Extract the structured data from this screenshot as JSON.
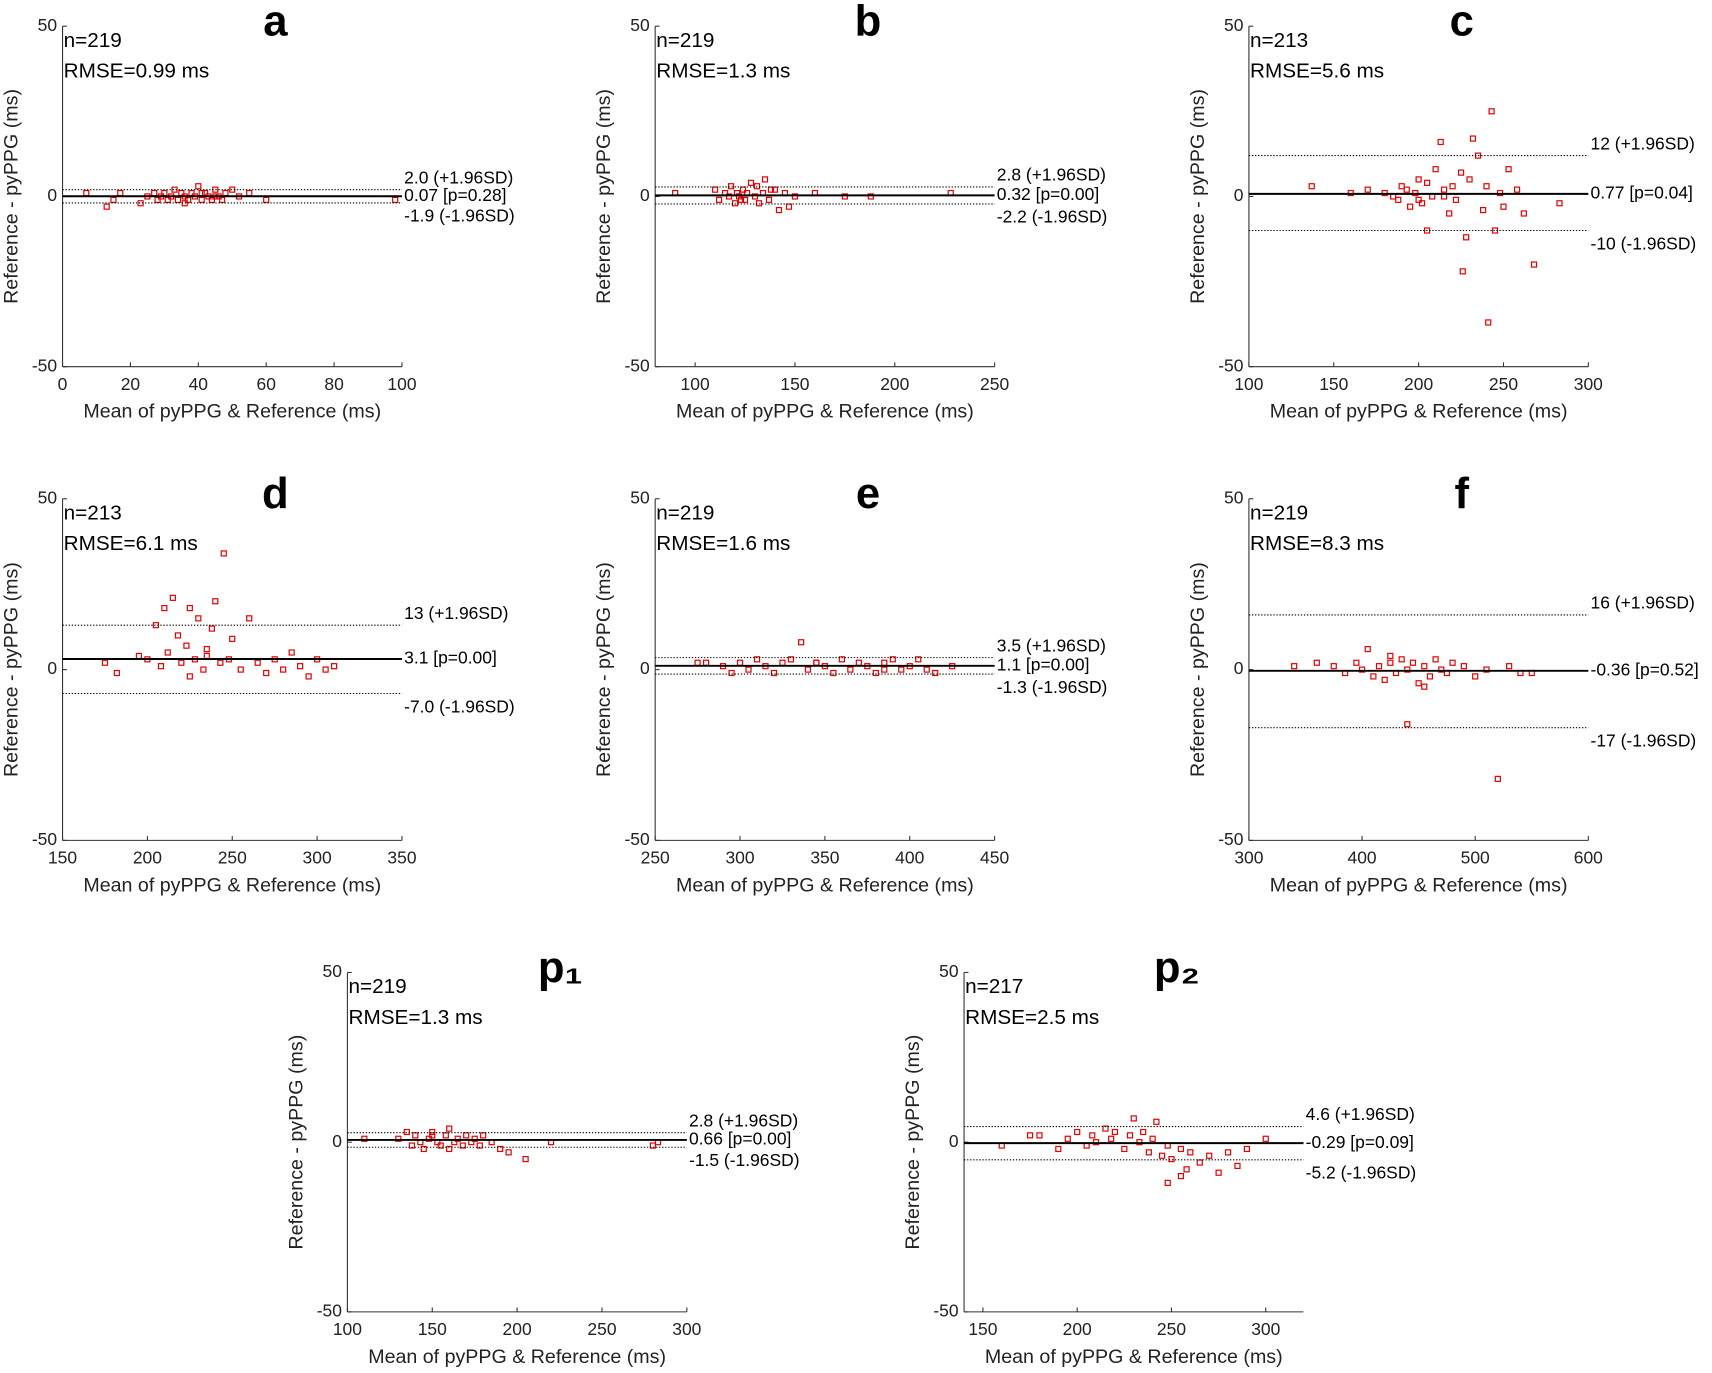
{
  "chart_data": [
    {
      "type": "scatter",
      "title": "a",
      "annotations": [
        "n=219",
        "RMSE=0.99 ms"
      ],
      "xlabel": "Mean of pyPPG & Reference (ms)",
      "ylabel": "Reference - pyPPG (ms)",
      "xlim": [
        0,
        100
      ],
      "xticks": [
        0,
        20,
        40,
        60,
        80,
        100
      ],
      "ylim": [
        -50,
        50
      ],
      "yticks": [
        -50,
        0,
        50
      ],
      "color": "#e60000",
      "x": [
        7,
        13,
        15,
        17,
        23,
        25,
        27,
        28,
        29,
        30,
        31,
        32,
        33,
        34,
        35,
        36,
        37,
        38,
        39,
        40,
        41,
        42,
        43,
        44,
        45,
        46,
        47,
        48,
        50,
        52,
        55,
        60,
        98,
        36,
        41,
        45
      ],
      "values": [
        1,
        -3,
        -1,
        1,
        -2,
        0,
        1,
        -1,
        0,
        1,
        -1,
        0,
        2,
        -1,
        1,
        0,
        -1,
        1,
        0,
        3,
        -1,
        1,
        0,
        -1,
        2,
        0,
        -1,
        1,
        2,
        0,
        1,
        -1,
        -1,
        -2,
        1,
        0
      ],
      "lines": [
        {
          "value": 2.0,
          "label": "2.0 (+1.96SD)",
          "style": "dotted"
        },
        {
          "value": 0.07,
          "label": "0.07 [p=0.28]",
          "style": "solid"
        },
        {
          "value": -1.9,
          "label": "-1.9 (-1.96SD)",
          "style": "dotted"
        }
      ]
    },
    {
      "type": "scatter",
      "title": "b",
      "annotations": [
        "n=219",
        "RMSE=1.3 ms"
      ],
      "xlabel": "Mean of pyPPG & Reference (ms)",
      "ylabel": "Reference - pyPPG (ms)",
      "xlim": [
        80,
        250
      ],
      "xticks": [
        100,
        150,
        200,
        250
      ],
      "ylim": [
        -50,
        50
      ],
      "yticks": [
        -50,
        0,
        50
      ],
      "color": "#e60000",
      "x": [
        90,
        110,
        112,
        115,
        117,
        118,
        120,
        121,
        122,
        124,
        125,
        126,
        128,
        130,
        132,
        134,
        135,
        137,
        140,
        142,
        145,
        147,
        150,
        160,
        175,
        188,
        228,
        123,
        131,
        138
      ],
      "values": [
        1,
        2,
        -1,
        1,
        0,
        3,
        -2,
        1,
        0,
        2,
        -1,
        1,
        4,
        0,
        -2,
        1,
        5,
        -1,
        2,
        -4,
        1,
        -3,
        0,
        1,
        0,
        0,
        1,
        -1,
        3,
        2
      ],
      "lines": [
        {
          "value": 2.8,
          "label": "2.8 (+1.96SD)",
          "style": "dotted"
        },
        {
          "value": 0.32,
          "label": "0.32 [p=0.00]",
          "style": "solid"
        },
        {
          "value": -2.2,
          "label": "-2.2 (-1.96SD)",
          "style": "dotted"
        }
      ]
    },
    {
      "type": "scatter",
      "title": "c",
      "annotations": [
        "n=213",
        "RMSE=5.6 ms"
      ],
      "xlabel": "Mean of pyPPG & Reference (ms)",
      "ylabel": "Reference - pyPPG (ms)",
      "xlim": [
        100,
        300
      ],
      "xticks": [
        100,
        150,
        200,
        250,
        300
      ],
      "ylim": [
        -50,
        50
      ],
      "yticks": [
        -50,
        0,
        50
      ],
      "color": "#e60000",
      "x": [
        137,
        160,
        170,
        180,
        185,
        188,
        190,
        193,
        195,
        198,
        200,
        202,
        205,
        205,
        208,
        210,
        213,
        215,
        218,
        220,
        222,
        225,
        226,
        228,
        230,
        232,
        235,
        238,
        240,
        241,
        243,
        245,
        248,
        250,
        253,
        258,
        262,
        268,
        283,
        200,
        215
      ],
      "values": [
        3,
        1,
        2,
        1,
        0,
        -1,
        3,
        2,
        -3,
        1,
        5,
        -2,
        -10,
        4,
        0,
        8,
        16,
        2,
        -5,
        3,
        -1,
        7,
        -22,
        -12,
        5,
        17,
        12,
        -4,
        3,
        -37,
        25,
        -10,
        1,
        -3,
        8,
        2,
        -5,
        -20,
        -2,
        -1,
        0
      ],
      "lines": [
        {
          "value": 12,
          "label": "12 (+1.96SD)",
          "style": "dotted"
        },
        {
          "value": 0.77,
          "label": "0.77 [p=0.04]",
          "style": "solid"
        },
        {
          "value": -10,
          "label": "-10 (-1.96SD)",
          "style": "dotted"
        }
      ]
    },
    {
      "type": "scatter",
      "title": "d",
      "annotations": [
        "n=213",
        "RMSE=6.1 ms"
      ],
      "xlabel": "Mean of pyPPG & Reference (ms)",
      "ylabel": "Reference - pyPPG (ms)",
      "xlim": [
        150,
        350
      ],
      "xticks": [
        150,
        200,
        250,
        300,
        350
      ],
      "ylim": [
        -50,
        50
      ],
      "yticks": [
        -50,
        0,
        50
      ],
      "color": "#e60000",
      "x": [
        175,
        182,
        195,
        200,
        205,
        208,
        210,
        212,
        215,
        218,
        220,
        223,
        225,
        228,
        230,
        233,
        235,
        238,
        240,
        243,
        245,
        248,
        250,
        255,
        260,
        265,
        270,
        275,
        280,
        285,
        290,
        295,
        300,
        305,
        310,
        225,
        235
      ],
      "values": [
        2,
        -1,
        4,
        3,
        13,
        1,
        18,
        5,
        21,
        10,
        2,
        7,
        18,
        3,
        15,
        0,
        4,
        12,
        20,
        2,
        34,
        3,
        9,
        0,
        15,
        2,
        -1,
        3,
        0,
        5,
        1,
        -2,
        3,
        0,
        1,
        -2,
        6
      ],
      "lines": [
        {
          "value": 13,
          "label": "13 (+1.96SD)",
          "style": "dotted"
        },
        {
          "value": 3.1,
          "label": "3.1 [p=0.00]",
          "style": "solid"
        },
        {
          "value": -7.0,
          "label": "-7.0 (-1.96SD)",
          "style": "dotted"
        }
      ]
    },
    {
      "type": "scatter",
      "title": "e",
      "annotations": [
        "n=219",
        "RMSE=1.6 ms"
      ],
      "xlabel": "Mean of pyPPG & Reference (ms)",
      "ylabel": "Reference - pyPPG (ms)",
      "xlim": [
        250,
        450
      ],
      "xticks": [
        250,
        300,
        350,
        400,
        450
      ],
      "ylim": [
        -50,
        50
      ],
      "yticks": [
        -50,
        0,
        50
      ],
      "color": "#e60000",
      "x": [
        275,
        280,
        290,
        295,
        300,
        305,
        310,
        315,
        320,
        325,
        330,
        336,
        340,
        345,
        350,
        355,
        360,
        365,
        370,
        375,
        380,
        385,
        390,
        395,
        400,
        405,
        410,
        415,
        425,
        345,
        385
      ],
      "values": [
        2,
        2,
        1,
        -1,
        2,
        0,
        3,
        1,
        -1,
        2,
        3,
        8,
        0,
        2,
        1,
        -1,
        3,
        0,
        2,
        1,
        -1,
        2,
        3,
        0,
        1,
        3,
        0,
        -1,
        1,
        2,
        0
      ],
      "lines": [
        {
          "value": 3.5,
          "label": "3.5 (+1.96SD)",
          "style": "dotted"
        },
        {
          "value": 1.1,
          "label": "1.1 [p=0.00]",
          "style": "solid"
        },
        {
          "value": -1.3,
          "label": "-1.3 (-1.96SD)",
          "style": "dotted"
        }
      ]
    },
    {
      "type": "scatter",
      "title": "f",
      "annotations": [
        "n=219",
        "RMSE=8.3 ms"
      ],
      "xlabel": "Mean of pyPPG & Reference (ms)",
      "ylabel": "Reference - pyPPG (ms)",
      "xlim": [
        300,
        600
      ],
      "xticks": [
        300,
        400,
        500,
        600
      ],
      "ylim": [
        -50,
        50
      ],
      "yticks": [
        -50,
        0,
        50
      ],
      "color": "#e60000",
      "x": [
        340,
        360,
        375,
        385,
        395,
        400,
        405,
        410,
        415,
        420,
        425,
        430,
        435,
        440,
        440,
        445,
        450,
        455,
        460,
        465,
        470,
        475,
        480,
        490,
        500,
        510,
        520,
        530,
        540,
        550,
        425,
        455
      ],
      "values": [
        1,
        2,
        1,
        -1,
        2,
        0,
        6,
        -2,
        1,
        -3,
        2,
        -1,
        3,
        -16,
        0,
        2,
        -4,
        1,
        -2,
        3,
        0,
        -1,
        2,
        1,
        -2,
        0,
        -32,
        1,
        -1,
        -1,
        4,
        -5
      ],
      "lines": [
        {
          "value": 16,
          "label": "16 (+1.96SD)",
          "style": "dotted"
        },
        {
          "value": -0.36,
          "label": "-0.36 [p=0.52]",
          "style": "solid"
        },
        {
          "value": -17,
          "label": "-17 (-1.96SD)",
          "style": "dotted"
        }
      ]
    },
    {
      "type": "scatter",
      "title": "p₁",
      "annotations": [
        "n=219",
        "RMSE=1.3 ms"
      ],
      "xlabel": "Mean of pyPPG & Reference (ms)",
      "ylabel": "Reference - pyPPG (ms)",
      "xlim": [
        100,
        300
      ],
      "xticks": [
        100,
        150,
        200,
        250,
        300
      ],
      "ylim": [
        -50,
        50
      ],
      "yticks": [
        -50,
        0,
        50
      ],
      "color": "#e60000",
      "x": [
        110,
        130,
        135,
        138,
        140,
        143,
        145,
        148,
        150,
        153,
        155,
        158,
        160,
        163,
        165,
        168,
        170,
        173,
        175,
        178,
        180,
        185,
        190,
        195,
        205,
        220,
        280,
        283,
        160,
        150
      ],
      "values": [
        1,
        1,
        3,
        -1,
        2,
        0,
        -2,
        1,
        3,
        0,
        -1,
        2,
        4,
        0,
        1,
        -1,
        2,
        0,
        1,
        -1,
        2,
        0,
        -2,
        -3,
        -5,
        0,
        -1,
        0,
        -2,
        2
      ],
      "lines": [
        {
          "value": 2.8,
          "label": "2.8 (+1.96SD)",
          "style": "dotted"
        },
        {
          "value": 0.66,
          "label": "0.66 [p=0.00]",
          "style": "solid"
        },
        {
          "value": -1.5,
          "label": "-1.5 (-1.96SD)",
          "style": "dotted"
        }
      ]
    },
    {
      "type": "scatter",
      "title": "p₂",
      "annotations": [
        "n=217",
        "RMSE=2.5 ms"
      ],
      "xlabel": "Mean of pyPPG & Reference (ms)",
      "ylabel": "Reference - pyPPG (ms)",
      "xlim": [
        140,
        320
      ],
      "xticks": [
        150,
        200,
        250,
        300
      ],
      "ylim": [
        -50,
        50
      ],
      "yticks": [
        -50,
        0,
        50
      ],
      "color": "#e60000",
      "x": [
        160,
        175,
        180,
        190,
        195,
        200,
        205,
        208,
        210,
        215,
        218,
        220,
        225,
        228,
        230,
        233,
        235,
        238,
        240,
        242,
        245,
        248,
        250,
        255,
        258,
        260,
        265,
        270,
        275,
        280,
        285,
        290,
        300,
        248,
        255
      ],
      "values": [
        -1,
        2,
        2,
        -2,
        1,
        3,
        -1,
        2,
        0,
        4,
        1,
        3,
        -2,
        2,
        7,
        0,
        3,
        -3,
        1,
        6,
        -4,
        -12,
        -5,
        -2,
        -8,
        -3,
        -6,
        -4,
        -9,
        -3,
        -7,
        -2,
        1,
        -1,
        -10
      ],
      "lines": [
        {
          "value": 4.6,
          "label": "4.6 (+1.96SD)",
          "style": "dotted"
        },
        {
          "value": -0.29,
          "label": "-0.29 [p=0.09]",
          "style": "solid"
        },
        {
          "value": -5.2,
          "label": "-5.2 (-1.96SD)",
          "style": "dotted"
        }
      ]
    }
  ]
}
